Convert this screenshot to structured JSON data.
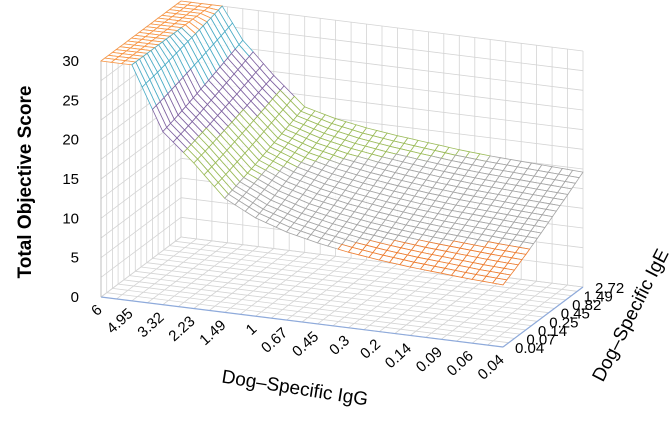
{
  "chart_data": {
    "type": "surface",
    "title": "",
    "xlabel": "Dog–Specific IgG",
    "ylabel": "Dog–Specific IgE",
    "zlabel": "Total Objective Score",
    "x_ticks": [
      "6",
      "4.95",
      "3.32",
      "2.23",
      "1.49",
      "1",
      "0.67",
      "0.45",
      "0.3",
      "0.2",
      "0.14",
      "0.09",
      "0.06",
      "0.04"
    ],
    "y_ticks": [
      "0.04",
      "0.07",
      "0.14",
      "0.25",
      "0.45",
      "0.82",
      "1.49",
      "2.72"
    ],
    "z_ticks": [
      "0",
      "5",
      "10",
      "15",
      "20",
      "25",
      "30"
    ],
    "zlim": [
      0,
      30
    ],
    "surface_profile": {
      "x": [
        "6",
        "4.95",
        "3.32",
        "2.23",
        "1.49",
        "1",
        "0.67",
        "0.45",
        "0.3",
        "0.2",
        "0.14",
        "0.09",
        "0.06",
        "0.04"
      ],
      "score_at_lowest_IgE": [
        31,
        30,
        22,
        18.5,
        14.5,
        12.5,
        11.2,
        10.3,
        9.6,
        9.1,
        8.7,
        8.4,
        8.1,
        7.9
      ],
      "score_at_highest_IgE": [
        33,
        32,
        26,
        22,
        18.5,
        17.5,
        16.8,
        16.3,
        15.9,
        15.5,
        15.2,
        15.0,
        14.8,
        14.6
      ]
    },
    "color_bands": [
      {
        "range": [
          0,
          5
        ],
        "color": "#4472C4"
      },
      {
        "range": [
          5,
          10
        ],
        "color": "#ED7D31"
      },
      {
        "range": [
          10,
          15
        ],
        "color": "#A5A5A5"
      },
      {
        "range": [
          15,
          20
        ],
        "color": "#9BBB59"
      },
      {
        "range": [
          20,
          25
        ],
        "color": "#8064A2"
      },
      {
        "range": [
          25,
          30
        ],
        "color": "#4BACC6"
      },
      {
        "range": [
          30,
          35
        ],
        "color": "#F79646"
      }
    ],
    "grid": true
  }
}
